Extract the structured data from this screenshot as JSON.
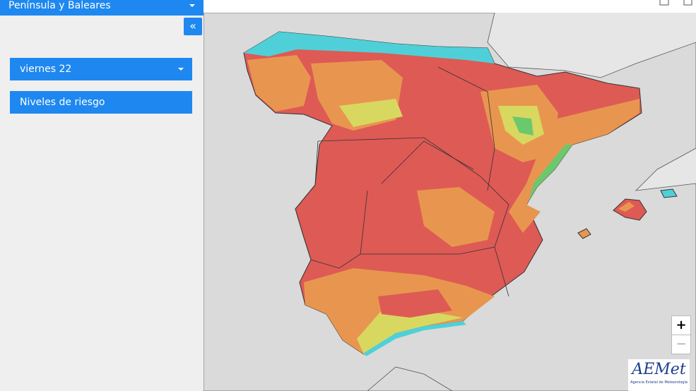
{
  "region_selector": {
    "label": "Península y Baleares"
  },
  "sidebar": {
    "collapse_button": "«",
    "day_selector": "viernes 22",
    "layer_button": "Niveles de riesgo"
  },
  "map": {
    "zoom_in": "+",
    "zoom_out": "−",
    "logo": {
      "name": "AEMet",
      "subtitle": "Agencia Estatal de Meteorología"
    }
  }
}
